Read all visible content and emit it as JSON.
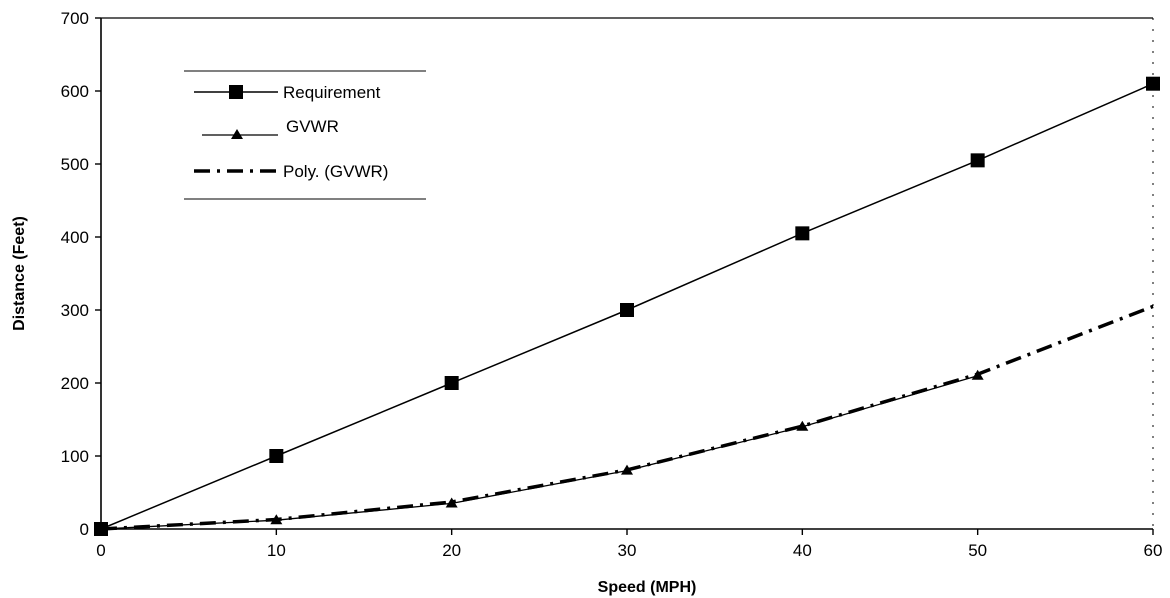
{
  "chart_data": {
    "type": "line",
    "title": "",
    "xlabel": "Speed (MPH)",
    "ylabel": "Distance (Feet)",
    "xlim": [
      0,
      60
    ],
    "ylim": [
      0,
      700
    ],
    "x_ticks": [
      0,
      10,
      20,
      30,
      40,
      50,
      60
    ],
    "y_ticks": [
      0,
      100,
      200,
      300,
      400,
      500,
      600,
      700
    ],
    "grid": false,
    "legend_position": "top-left",
    "series": [
      {
        "name": "Requirement",
        "style": "solid line with square markers",
        "color": "#000000",
        "x": [
          0,
          10,
          20,
          30,
          40,
          50,
          60
        ],
        "y": [
          0,
          100,
          200,
          300,
          405,
          505,
          610
        ]
      },
      {
        "name": "GVWR",
        "style": "solid line with triangle markers",
        "color": "#000000",
        "x": [
          0,
          10,
          20,
          30,
          40,
          50
        ],
        "y": [
          0,
          12,
          35,
          80,
          140,
          210
        ]
      },
      {
        "name": "Poly. (GVWR)",
        "style": "dash-dot trendline",
        "color": "#000000",
        "x": [
          0,
          10,
          20,
          30,
          40,
          50,
          60
        ],
        "y": [
          0,
          13,
          37,
          81,
          141,
          212,
          305
        ]
      }
    ]
  }
}
